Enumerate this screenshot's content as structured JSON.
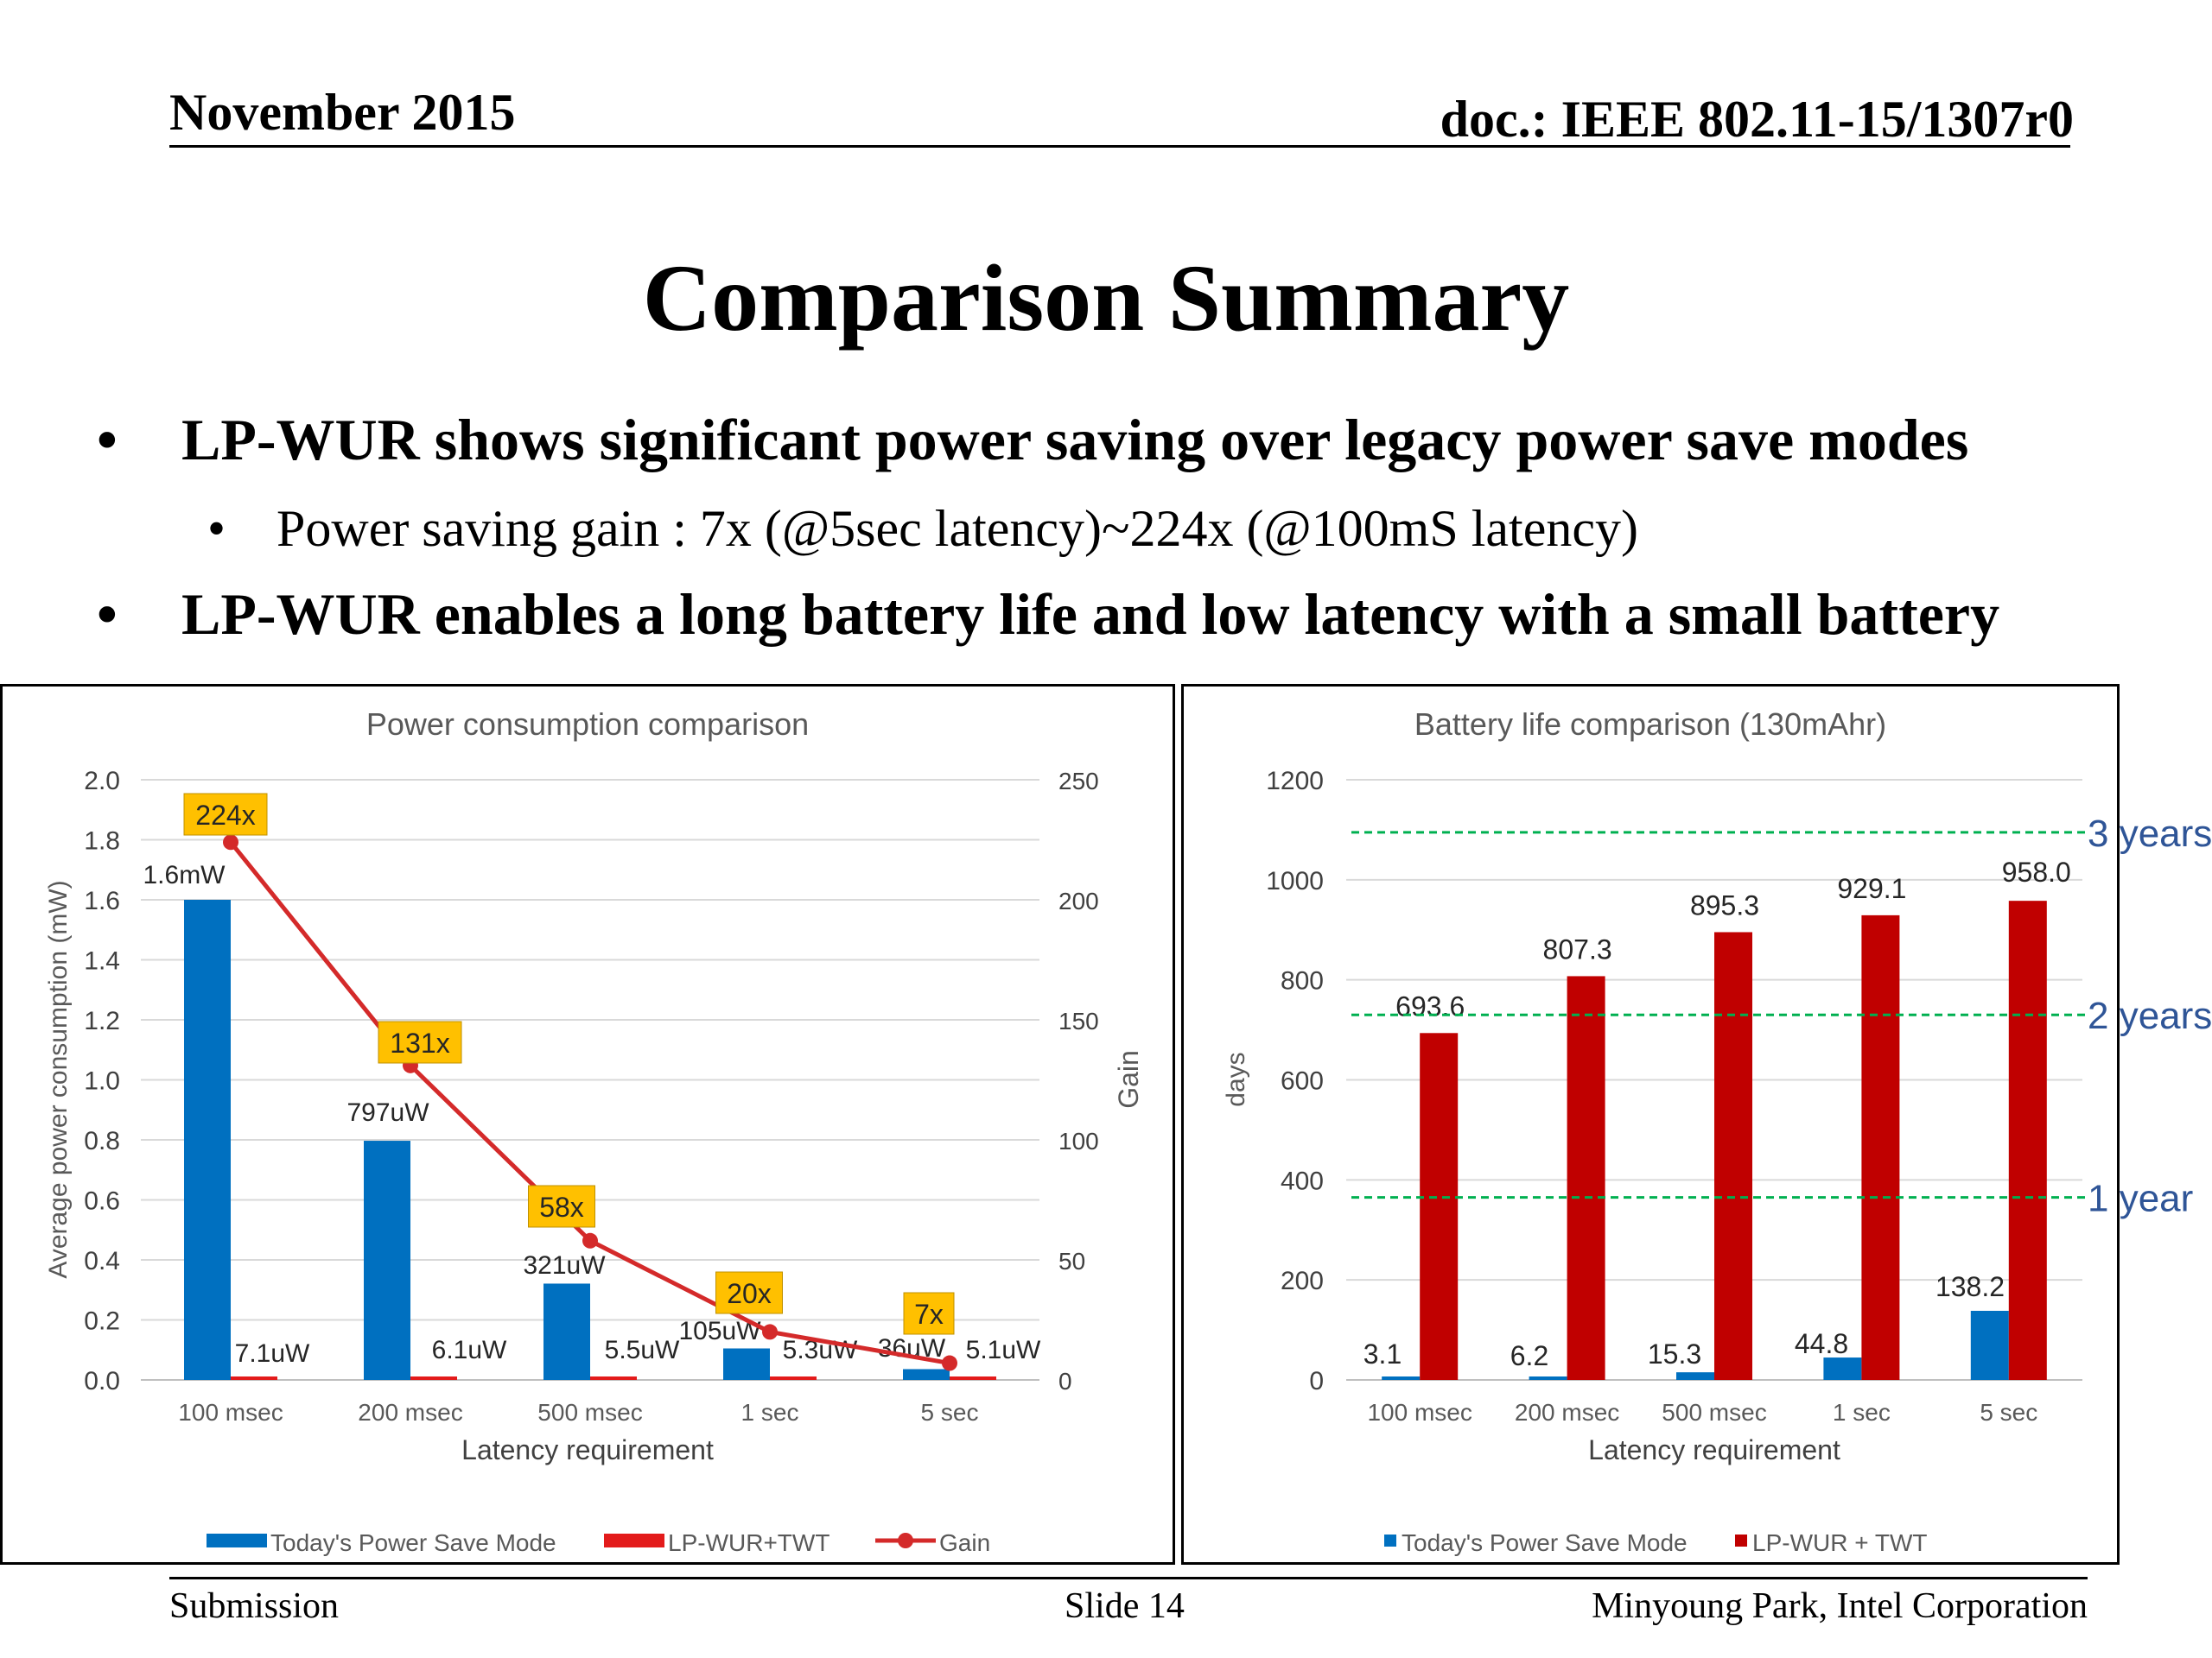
{
  "header": {
    "date": "November 2015",
    "doc": "doc.: IEEE 802.11-15/1307r0"
  },
  "title": "Comparison Summary",
  "bullets": [
    {
      "bullet": "•",
      "text": "LP-WUR shows significant power saving over legacy power save modes"
    },
    {
      "bullet": "•",
      "text": "Power saving gain : 7x (@5sec latency)~224x (@100mS latency)"
    },
    {
      "bullet": "•",
      "text": "LP-WUR enables a long battery life and low latency with a small battery"
    }
  ],
  "footer": {
    "left": "Submission",
    "center": "Slide 14",
    "right": "Minyoung Park, Intel Corporation"
  },
  "colors": {
    "blue": "#0070c0",
    "red": "#e31b1b",
    "dark_red": "#c00000",
    "gain_line": "#d42a2a",
    "gain_label_bg": "#ffc000",
    "green_dashed": "#00b050",
    "year_label": "#2f5597",
    "grid": "#d9d9d9"
  },
  "chart_data": [
    {
      "type": "bar",
      "title": "Power consumption comparison",
      "xlabel": "Latency requirement",
      "ylabel": "Average power  consumption (mW)",
      "y2label": "Gain",
      "categories": [
        "100 msec",
        "200 msec",
        "500 msec",
        "1 sec",
        "5 sec"
      ],
      "ylim": [
        0,
        2.0
      ],
      "yticks": [
        "0.0",
        "0.2",
        "0.4",
        "0.6",
        "0.8",
        "1.0",
        "1.2",
        "1.4",
        "1.6",
        "1.8",
        "2.0"
      ],
      "y2lim": [
        0,
        250
      ],
      "y2ticks": [
        "0",
        "50",
        "100",
        "150",
        "200",
        "250"
      ],
      "grid": true,
      "legend": "bottom",
      "series": [
        {
          "name": "Today's Power Save Mode",
          "type": "bar",
          "axis": "left",
          "values": [
            1.6,
            0.797,
            0.321,
            0.105,
            0.036
          ],
          "labels": [
            "1.6mW",
            "797uW",
            "321uW",
            "105uW",
            "36uW"
          ]
        },
        {
          "name": "LP-WUR+TWT",
          "type": "bar",
          "axis": "left",
          "values": [
            0.0071,
            0.0061,
            0.0055,
            0.0053,
            0.0051
          ],
          "labels": [
            "7.1uW",
            "6.1uW",
            "5.5uW",
            "5.3uW",
            "5.1uW"
          ]
        },
        {
          "name": "Gain",
          "type": "line",
          "axis": "right",
          "values": [
            224,
            131,
            58,
            20,
            7
          ],
          "labels": [
            "224x",
            "131x",
            "58x",
            "20x",
            "7x"
          ]
        }
      ]
    },
    {
      "type": "bar",
      "title": "Battery life comparison (130mAhr)",
      "xlabel": "Latency requirement",
      "ylabel": "days",
      "categories": [
        "100 msec",
        "200 msec",
        "500 msec",
        "1 sec",
        "5 sec"
      ],
      "ylim": [
        0,
        1200
      ],
      "yticks": [
        "0",
        "200",
        "400",
        "600",
        "800",
        "1000",
        "1200"
      ],
      "grid": true,
      "legend": "bottom",
      "series": [
        {
          "name": "Today's Power Save Mode",
          "values": [
            3.1,
            6.2,
            15.3,
            44.8,
            138.2
          ],
          "labels": [
            "3.1",
            "6.2",
            "15.3",
            "44.8",
            "138.2"
          ]
        },
        {
          "name": "LP-WUR + TWT",
          "values": [
            693.6,
            807.3,
            895.3,
            929.1,
            958.0
          ],
          "labels": [
            "693.6",
            "807.3",
            "895.3",
            "929.1",
            "958.0"
          ]
        }
      ],
      "reference_lines": [
        {
          "label": "1 year",
          "value": 365
        },
        {
          "label": "2 years",
          "value": 730
        },
        {
          "label": "3 years",
          "value": 1095
        }
      ]
    }
  ]
}
